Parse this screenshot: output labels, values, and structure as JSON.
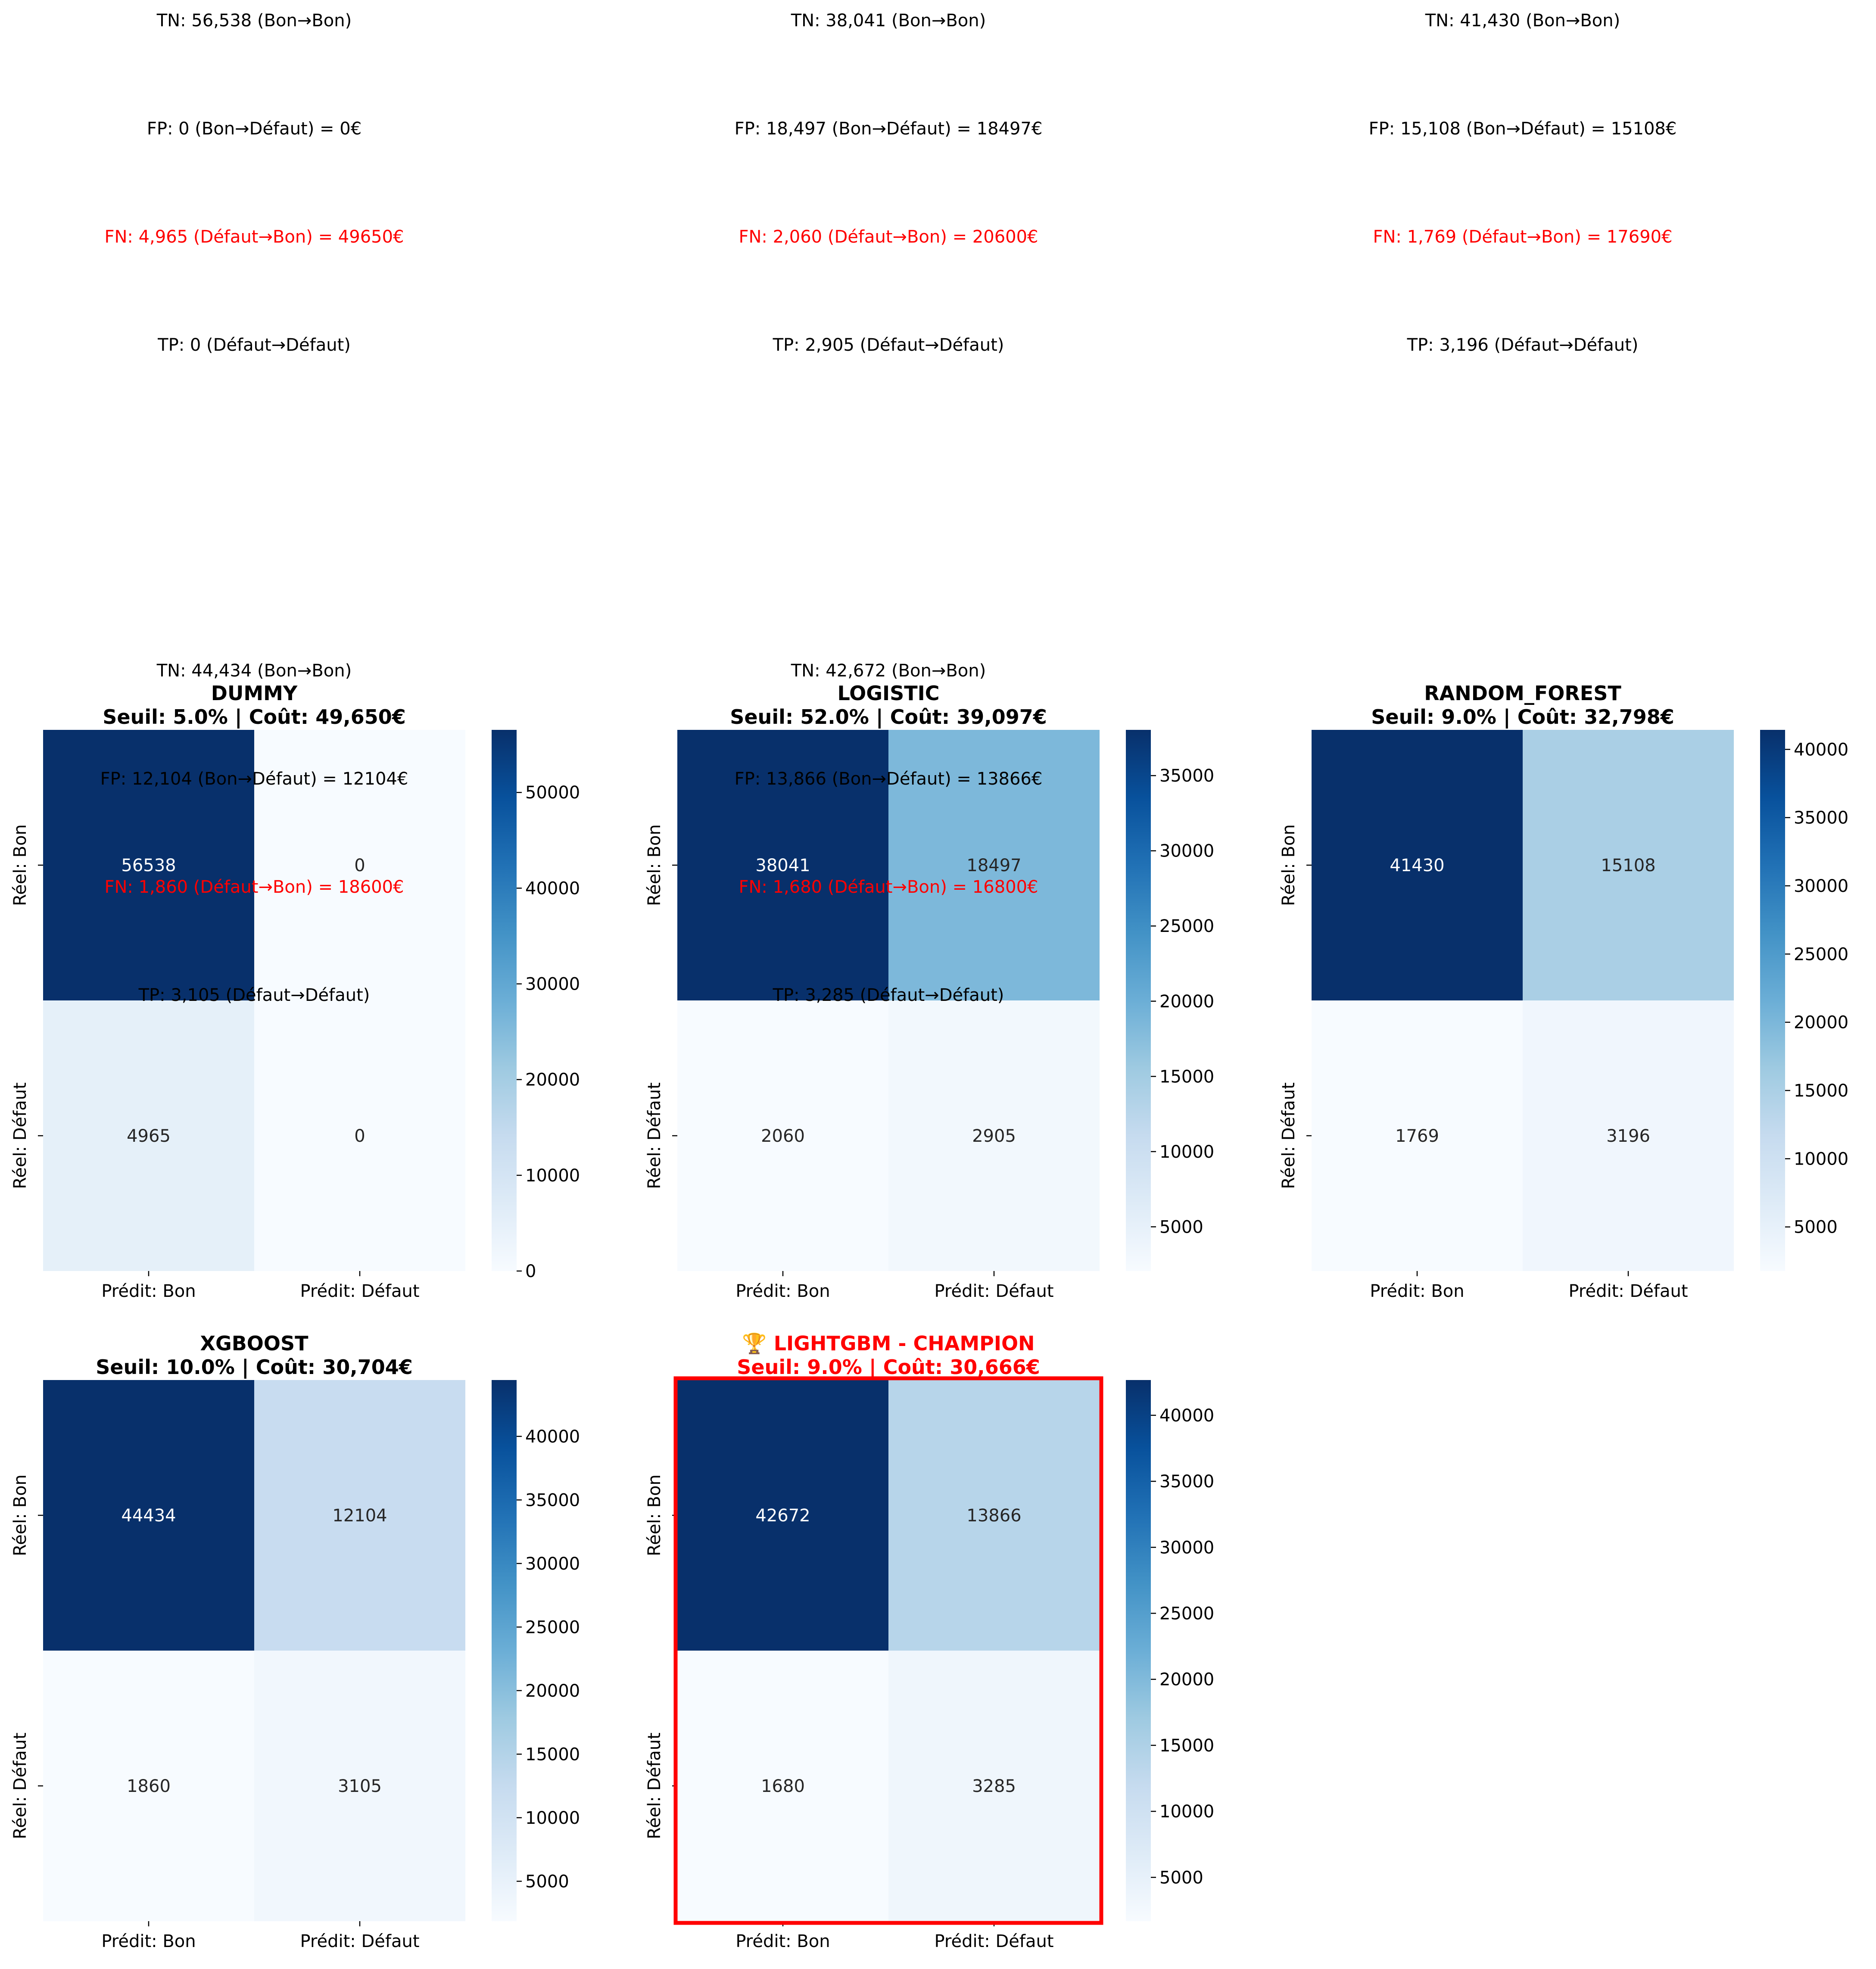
{
  "chart_data": [
    {
      "type": "heatmap",
      "title_line1": "DUMMY",
      "title_line2": "Seuil: 5.0% | Coût: 49,650€",
      "champion": false,
      "x_tick_labels": [
        "Prédit: Bon",
        "Prédit: Défaut"
      ],
      "y_tick_labels": [
        "Réel: Bon",
        "Réel: Défaut"
      ],
      "values": [
        [
          56538,
          0
        ],
        [
          4965,
          0
        ]
      ],
      "colorbar": {
        "min": 0,
        "max": 56538,
        "ticks": [
          0,
          10000,
          20000,
          30000,
          40000,
          50000
        ]
      },
      "annotations": [
        {
          "text": "TN: 56,538 (Bon→Bon)",
          "color": "#000000"
        },
        {
          "text": "FP: 0 (Bon→Défaut) = 0€",
          "color": "#000000"
        },
        {
          "text": "FN: 4,965 (Défaut→Bon) = 49650€",
          "color": "#ff0000"
        },
        {
          "text": "TP: 0 (Défaut→Défaut)",
          "color": "#000000"
        }
      ]
    },
    {
      "type": "heatmap",
      "title_line1": "LOGISTIC",
      "title_line2": "Seuil: 52.0% | Coût: 39,097€",
      "champion": false,
      "x_tick_labels": [
        "Prédit: Bon",
        "Prédit: Défaut"
      ],
      "y_tick_labels": [
        "Réel: Bon",
        "Réel: Défaut"
      ],
      "values": [
        [
          38041,
          18497
        ],
        [
          2060,
          2905
        ]
      ],
      "colorbar": {
        "min": 2060,
        "max": 38041,
        "ticks": [
          5000,
          10000,
          15000,
          20000,
          25000,
          30000,
          35000
        ]
      },
      "annotations": [
        {
          "text": "TN: 38,041 (Bon→Bon)",
          "color": "#000000"
        },
        {
          "text": "FP: 18,497 (Bon→Défaut) = 18497€",
          "color": "#000000"
        },
        {
          "text": "FN: 2,060 (Défaut→Bon) = 20600€",
          "color": "#ff0000"
        },
        {
          "text": "TP: 2,905 (Défaut→Défaut)",
          "color": "#000000"
        }
      ]
    },
    {
      "type": "heatmap",
      "title_line1": "RANDOM_FOREST",
      "title_line2": "Seuil: 9.0% | Coût: 32,798€",
      "champion": false,
      "x_tick_labels": [
        "Prédit: Bon",
        "Prédit: Défaut"
      ],
      "y_tick_labels": [
        "Réel: Bon",
        "Réel: Défaut"
      ],
      "values": [
        [
          41430,
          15108
        ],
        [
          1769,
          3196
        ]
      ],
      "colorbar": {
        "min": 1769,
        "max": 41430,
        "ticks": [
          5000,
          10000,
          15000,
          20000,
          25000,
          30000,
          35000,
          40000
        ]
      },
      "annotations": [
        {
          "text": "TN: 41,430 (Bon→Bon)",
          "color": "#000000"
        },
        {
          "text": "FP: 15,108 (Bon→Défaut) = 15108€",
          "color": "#000000"
        },
        {
          "text": "FN: 1,769 (Défaut→Bon) = 17690€",
          "color": "#ff0000"
        },
        {
          "text": "TP: 3,196 (Défaut→Défaut)",
          "color": "#000000"
        }
      ]
    },
    {
      "type": "heatmap",
      "title_line1": "XGBOOST",
      "title_line2": "Seuil: 10.0% | Coût: 30,704€",
      "champion": false,
      "x_tick_labels": [
        "Prédit: Bon",
        "Prédit: Défaut"
      ],
      "y_tick_labels": [
        "Réel: Bon",
        "Réel: Défaut"
      ],
      "values": [
        [
          44434,
          12104
        ],
        [
          1860,
          3105
        ]
      ],
      "colorbar": {
        "min": 1860,
        "max": 44434,
        "ticks": [
          5000,
          10000,
          15000,
          20000,
          25000,
          30000,
          35000,
          40000
        ]
      },
      "annotations": [
        {
          "text": "TN: 44,434 (Bon→Bon)",
          "color": "#000000"
        },
        {
          "text": "FP: 12,104 (Bon→Défaut) = 12104€",
          "color": "#000000"
        },
        {
          "text": "FN: 1,860 (Défaut→Bon) = 18600€",
          "color": "#ff0000"
        },
        {
          "text": "TP: 3,105 (Défaut→Défaut)",
          "color": "#000000"
        }
      ]
    },
    {
      "type": "heatmap",
      "title_line1": "🏆 LIGHTGBM - CHAMPION",
      "title_line2": "Seuil: 9.0% | Coût: 30,666€",
      "champion": true,
      "x_tick_labels": [
        "Prédit: Bon",
        "Prédit: Défaut"
      ],
      "y_tick_labels": [
        "Réel: Bon",
        "Réel: Défaut"
      ],
      "values": [
        [
          42672,
          13866
        ],
        [
          1680,
          3285
        ]
      ],
      "colorbar": {
        "min": 1680,
        "max": 42672,
        "ticks": [
          5000,
          10000,
          15000,
          20000,
          25000,
          30000,
          35000,
          40000
        ]
      },
      "annotations": [
        {
          "text": "TN: 42,672 (Bon→Bon)",
          "color": "#000000"
        },
        {
          "text": "FP: 13,866 (Bon→Défaut) = 13866€",
          "color": "#000000"
        },
        {
          "text": "FN: 1,680 (Défaut→Bon) = 16800€",
          "color": "#ff0000"
        },
        {
          "text": "TP: 3,285 (Défaut→Défaut)",
          "color": "#000000"
        }
      ]
    }
  ],
  "colors": {
    "colormap": "Blues",
    "title_default": "#000000",
    "title_champion": "#ff0000",
    "champion_frame": "#ff0000",
    "fn_annotation": "#ff0000"
  }
}
